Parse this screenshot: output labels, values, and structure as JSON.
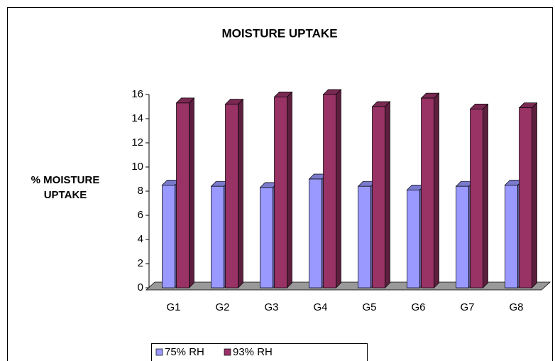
{
  "chart_data": {
    "type": "bar3d",
    "title": "MOISTURE UPTAKE",
    "y_label": "% MOISTURE UPTAKE",
    "categories": [
      "G1",
      "G2",
      "G3",
      "G4",
      "G5",
      "G6",
      "G7",
      "G8"
    ],
    "series": [
      {
        "name": "75% RH",
        "color": "#9999ff",
        "values": [
          8.5,
          8.4,
          8.3,
          9.0,
          8.4,
          8.1,
          8.4,
          8.5
        ]
      },
      {
        "name": "93% RH",
        "color": "#993366",
        "values": [
          15.3,
          15.2,
          15.8,
          16.0,
          15.0,
          15.7,
          14.8,
          14.9
        ]
      }
    ],
    "ylim": [
      0,
      16
    ],
    "yticks": [
      0,
      2,
      4,
      6,
      8,
      10,
      12,
      14,
      16
    ],
    "grid": false,
    "legend": "bottom"
  }
}
